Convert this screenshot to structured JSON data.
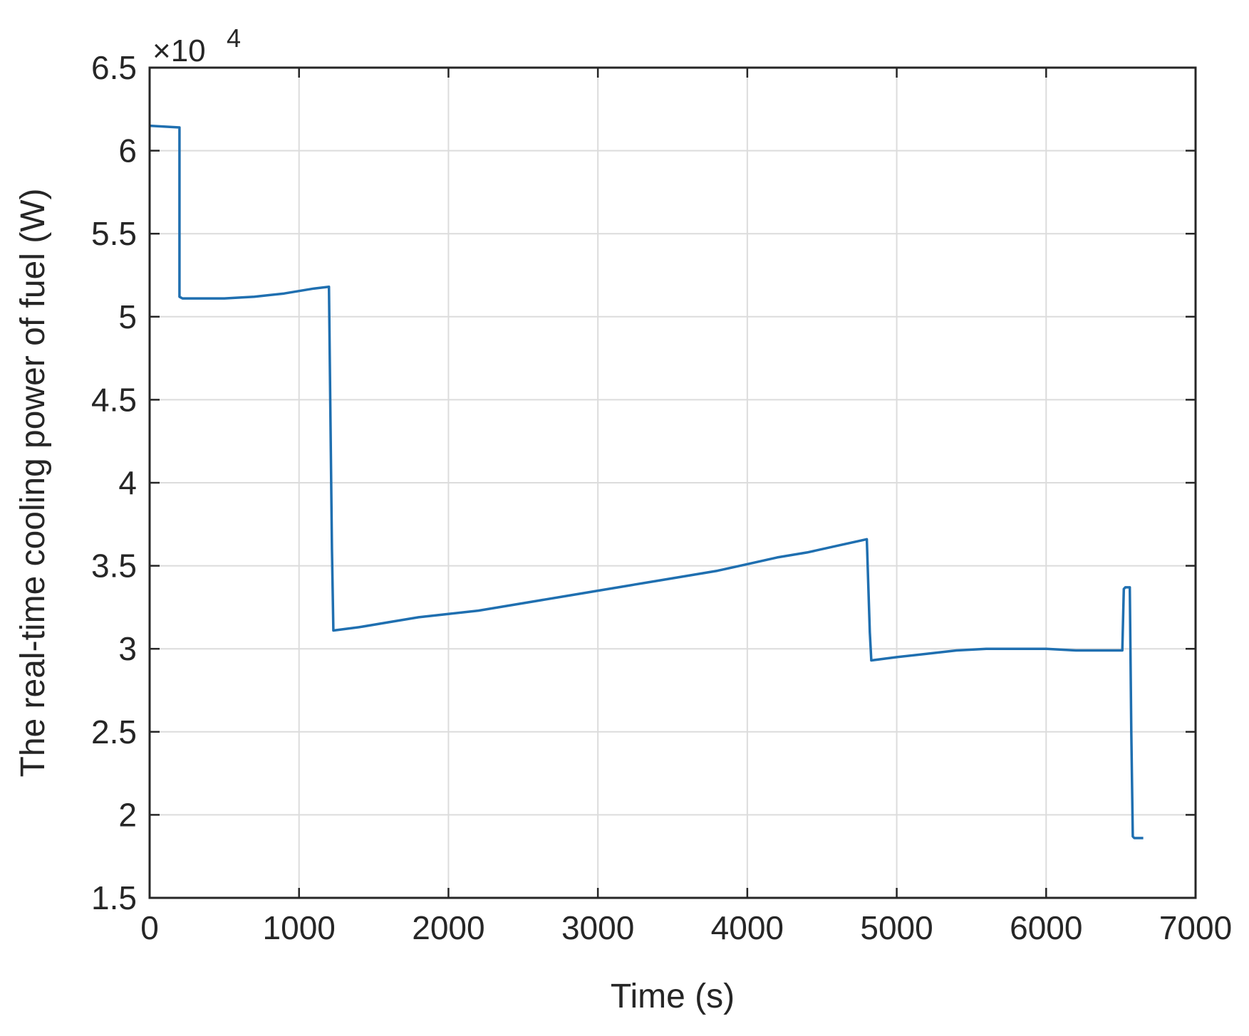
{
  "chart_data": {
    "type": "line",
    "title": "",
    "xlabel": "Time (s)",
    "ylabel": "The real-time cooling power of fuel (W)",
    "y_exponent_base": "×10",
    "y_exponent_power": "4",
    "xlim": [
      0,
      7000
    ],
    "ylim": [
      1.5,
      6.5
    ],
    "grid": true,
    "x_ticks": [
      "0",
      "1000",
      "2000",
      "3000",
      "4000",
      "5000",
      "6000",
      "7000"
    ],
    "x_tick_values": [
      0,
      1000,
      2000,
      3000,
      4000,
      5000,
      6000,
      7000
    ],
    "y_ticks": [
      "1.5",
      "2",
      "2.5",
      "3",
      "3.5",
      "4",
      "4.5",
      "5",
      "5.5",
      "6",
      "6.5"
    ],
    "y_tick_values": [
      1.5,
      2,
      2.5,
      3,
      3.5,
      4,
      4.5,
      5,
      5.5,
      6,
      6.5
    ],
    "colors": {
      "line": "#1f6fb0"
    },
    "series": [
      {
        "x": [
          0,
          200,
          200,
          220,
          300,
          500,
          700,
          900,
          1100,
          1200,
          1220,
          1230,
          1400,
          1600,
          1800,
          2000,
          2200,
          2400,
          2600,
          2800,
          3000,
          3200,
          3400,
          3600,
          3800,
          4000,
          4200,
          4400,
          4600,
          4800,
          4820,
          4830,
          5000,
          5200,
          5400,
          5600,
          5800,
          6000,
          6200,
          6400,
          6510,
          6520,
          6530,
          6560,
          6570,
          6580,
          6590,
          6650
        ],
        "y": [
          6.15,
          6.14,
          5.12,
          5.11,
          5.11,
          5.11,
          5.12,
          5.14,
          5.17,
          5.18,
          3.6,
          3.11,
          3.13,
          3.16,
          3.19,
          3.21,
          3.23,
          3.26,
          3.29,
          3.32,
          3.35,
          3.38,
          3.41,
          3.44,
          3.47,
          3.51,
          3.55,
          3.58,
          3.62,
          3.66,
          3.1,
          2.93,
          2.95,
          2.97,
          2.99,
          3.0,
          3.0,
          3.0,
          2.99,
          2.99,
          2.99,
          3.36,
          3.37,
          3.37,
          2.5,
          1.87,
          1.86,
          1.86
        ]
      }
    ]
  }
}
